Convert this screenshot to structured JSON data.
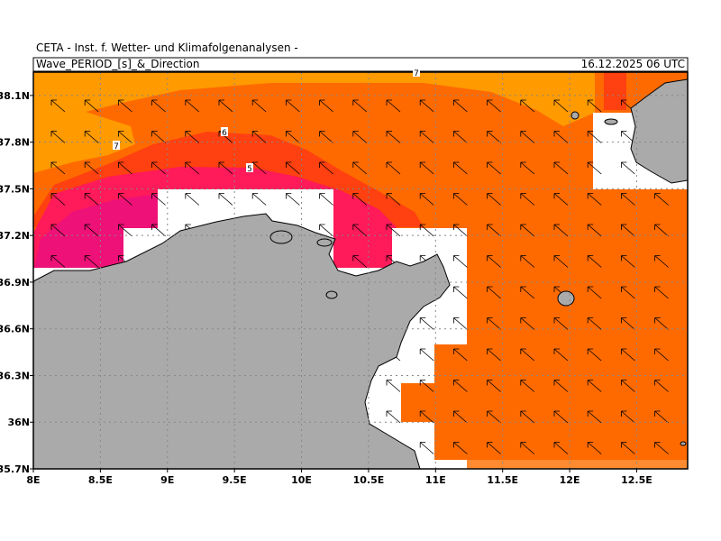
{
  "header": {
    "institute": "CETA - Inst. f. Wetter- und Klimafolgenanalysen -",
    "variable": "Wave_PERIOD_[s]_&_Direction",
    "valid_time": "16.12.2025 06 UTC"
  },
  "map": {
    "xlim": [
      8,
      12.88
    ],
    "ylim": [
      35.7,
      38.25
    ],
    "xticks": [
      {
        "value": 8,
        "label": "8E"
      },
      {
        "value": 8.5,
        "label": "8.5E"
      },
      {
        "value": 9,
        "label": "9E"
      },
      {
        "value": 9.5,
        "label": "9.5E"
      },
      {
        "value": 10,
        "label": "10E"
      },
      {
        "value": 10.5,
        "label": "10.5E"
      },
      {
        "value": 11,
        "label": "11E"
      },
      {
        "value": 11.5,
        "label": "11.5E"
      },
      {
        "value": 12,
        "label": "12E"
      },
      {
        "value": 12.5,
        "label": "12.5E"
      }
    ],
    "yticks": [
      {
        "value": 35.7,
        "label": "35.7N"
      },
      {
        "value": 36,
        "label": "36N"
      },
      {
        "value": 36.3,
        "label": "36.3N"
      },
      {
        "value": 36.6,
        "label": "36.6N"
      },
      {
        "value": 36.9,
        "label": "36.9N"
      },
      {
        "value": 37.2,
        "label": "37.2N"
      },
      {
        "value": 37.5,
        "label": "37.5N"
      },
      {
        "value": 37.8,
        "label": "37.8N"
      },
      {
        "value": 38.1,
        "label": "38.1N"
      }
    ],
    "contour_labels": [
      7,
      6,
      5,
      7
    ]
  }
}
